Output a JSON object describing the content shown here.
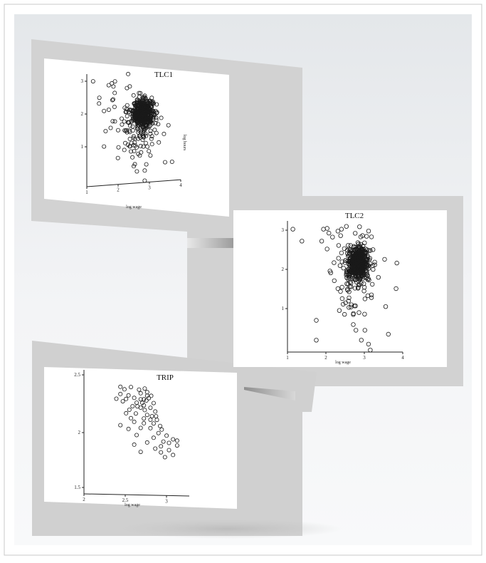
{
  "chart_data": [
    {
      "type": "scatter",
      "title": "TLC1",
      "xlabel": "log wage",
      "ylabel": "log hours",
      "xticks": [
        "1",
        "2",
        "3",
        "4"
      ],
      "yticks": [
        "1",
        "2",
        "3"
      ],
      "xlim": [
        1,
        4
      ],
      "ylim": [
        0,
        3.2
      ],
      "grid": false,
      "cluster": {
        "x": 2.8,
        "y": 2.05,
        "sx": 0.16,
        "sy": 0.2,
        "n": 520
      },
      "scatter": {
        "x": 2.55,
        "y": 1.7,
        "sx": 0.4,
        "sy": 0.55,
        "n": 120
      },
      "points": [
        {
          "x": 1.2,
          "y": 3.1
        },
        {
          "x": 1.7,
          "y": 2.95
        },
        {
          "x": 1.8,
          "y": 3.0
        },
        {
          "x": 1.85,
          "y": 2.9
        },
        {
          "x": 1.9,
          "y": 3.05
        },
        {
          "x": 1.4,
          "y": 2.6
        },
        {
          "x": 1.55,
          "y": 2.2
        },
        {
          "x": 1.6,
          "y": 1.6
        },
        {
          "x": 1.55,
          "y": 1.15
        },
        {
          "x": 2.0,
          "y": 1.6
        },
        {
          "x": 2.5,
          "y": 0.5
        },
        {
          "x": 2.85,
          "y": 0.35
        },
        {
          "x": 3.5,
          "y": 0.55
        },
        {
          "x": 3.3,
          "y": 1.15
        },
        {
          "x": 2.85,
          "y": 0.05
        }
      ]
    },
    {
      "type": "scatter",
      "title": "TLC2",
      "xlabel": "log wage",
      "ylabel": "",
      "xticks": [
        "1",
        "2",
        "3",
        "4"
      ],
      "yticks": [
        "1",
        "2",
        "3"
      ],
      "xlim": [
        0.8,
        4
      ],
      "ylim": [
        0,
        3.2
      ],
      "grid": false,
      "cluster": {
        "x": 2.75,
        "y": 2.25,
        "sx": 0.14,
        "sy": 0.2,
        "n": 520
      },
      "scatter": {
        "x": 2.7,
        "y": 1.9,
        "sx": 0.3,
        "sy": 0.55,
        "n": 110
      },
      "points": [
        {
          "x": 0.95,
          "y": 3.1
        },
        {
          "x": 1.2,
          "y": 2.8
        },
        {
          "x": 1.8,
          "y": 3.1
        },
        {
          "x": 1.9,
          "y": 3.12
        },
        {
          "x": 1.95,
          "y": 3.0
        },
        {
          "x": 2.05,
          "y": 2.9
        },
        {
          "x": 2.2,
          "y": 3.05
        },
        {
          "x": 2.3,
          "y": 3.1
        },
        {
          "x": 1.75,
          "y": 2.8
        },
        {
          "x": 1.9,
          "y": 2.6
        },
        {
          "x": 2.3,
          "y": 2.5
        },
        {
          "x": 2.0,
          "y": 2.0
        },
        {
          "x": 2.1,
          "y": 1.8
        },
        {
          "x": 2.2,
          "y": 1.6
        },
        {
          "x": 1.6,
          "y": 0.8
        },
        {
          "x": 1.6,
          "y": 0.3
        },
        {
          "x": 2.7,
          "y": 0.55
        },
        {
          "x": 2.85,
          "y": 0.3
        },
        {
          "x": 3.05,
          "y": 0.2
        },
        {
          "x": 3.6,
          "y": 0.45
        },
        {
          "x": 3.1,
          "y": 0.05
        },
        {
          "x": 2.95,
          "y": 0.55
        }
      ]
    },
    {
      "type": "scatter",
      "title": "TRIP",
      "xlabel": "log wage",
      "ylabel": "",
      "xticks": [
        "2",
        "2.5",
        "3"
      ],
      "yticks": [
        "1.5",
        "2",
        "2.5"
      ],
      "xlim": [
        2,
        3.3
      ],
      "ylim": [
        1.5,
        2.5
      ],
      "grid": false,
      "points": [
        {
          "x": 2.45,
          "y": 2.4
        },
        {
          "x": 2.5,
          "y": 2.38
        },
        {
          "x": 2.58,
          "y": 2.4
        },
        {
          "x": 2.68,
          "y": 2.38
        },
        {
          "x": 2.75,
          "y": 2.39
        },
        {
          "x": 2.78,
          "y": 2.36
        },
        {
          "x": 2.45,
          "y": 2.34
        },
        {
          "x": 2.55,
          "y": 2.33
        },
        {
          "x": 2.7,
          "y": 2.35
        },
        {
          "x": 2.78,
          "y": 2.33
        },
        {
          "x": 2.83,
          "y": 2.33
        },
        {
          "x": 2.4,
          "y": 2.3
        },
        {
          "x": 2.52,
          "y": 2.3
        },
        {
          "x": 2.62,
          "y": 2.31
        },
        {
          "x": 2.7,
          "y": 2.3
        },
        {
          "x": 2.74,
          "y": 2.3
        },
        {
          "x": 2.77,
          "y": 2.29
        },
        {
          "x": 2.8,
          "y": 2.31
        },
        {
          "x": 2.48,
          "y": 2.28
        },
        {
          "x": 2.65,
          "y": 2.27
        },
        {
          "x": 2.72,
          "y": 2.27
        },
        {
          "x": 2.86,
          "y": 2.27
        },
        {
          "x": 2.6,
          "y": 2.24
        },
        {
          "x": 2.66,
          "y": 2.24
        },
        {
          "x": 2.7,
          "y": 2.23
        },
        {
          "x": 2.74,
          "y": 2.25
        },
        {
          "x": 2.82,
          "y": 2.23
        },
        {
          "x": 2.56,
          "y": 2.21
        },
        {
          "x": 2.75,
          "y": 2.21
        },
        {
          "x": 2.88,
          "y": 2.2
        },
        {
          "x": 2.52,
          "y": 2.18
        },
        {
          "x": 2.64,
          "y": 2.18
        },
        {
          "x": 2.78,
          "y": 2.17
        },
        {
          "x": 2.84,
          "y": 2.16
        },
        {
          "x": 2.89,
          "y": 2.16
        },
        {
          "x": 2.58,
          "y": 2.14
        },
        {
          "x": 2.74,
          "y": 2.14
        },
        {
          "x": 2.82,
          "y": 2.13
        },
        {
          "x": 2.9,
          "y": 2.13
        },
        {
          "x": 2.62,
          "y": 2.11
        },
        {
          "x": 2.74,
          "y": 2.1
        },
        {
          "x": 2.86,
          "y": 2.1
        },
        {
          "x": 2.94,
          "y": 2.08
        },
        {
          "x": 2.45,
          "y": 2.08
        },
        {
          "x": 2.55,
          "y": 2.05
        },
        {
          "x": 2.7,
          "y": 2.06
        },
        {
          "x": 2.82,
          "y": 2.06
        },
        {
          "x": 2.96,
          "y": 2.05
        },
        {
          "x": 2.92,
          "y": 2.02
        },
        {
          "x": 3.02,
          "y": 2.0
        },
        {
          "x": 2.65,
          "y": 2.0
        },
        {
          "x": 2.86,
          "y": 1.98
        },
        {
          "x": 3.1,
          "y": 1.97
        },
        {
          "x": 3.15,
          "y": 1.96
        },
        {
          "x": 2.98,
          "y": 1.95
        },
        {
          "x": 3.05,
          "y": 1.94
        },
        {
          "x": 2.78,
          "y": 1.94
        },
        {
          "x": 2.62,
          "y": 1.92
        },
        {
          "x": 2.95,
          "y": 1.91
        },
        {
          "x": 3.15,
          "y": 1.92
        },
        {
          "x": 2.88,
          "y": 1.89
        },
        {
          "x": 3.05,
          "y": 1.88
        },
        {
          "x": 2.7,
          "y": 1.86
        },
        {
          "x": 2.95,
          "y": 1.86
        },
        {
          "x": 3.1,
          "y": 1.84
        },
        {
          "x": 3.0,
          "y": 1.82
        }
      ]
    }
  ]
}
